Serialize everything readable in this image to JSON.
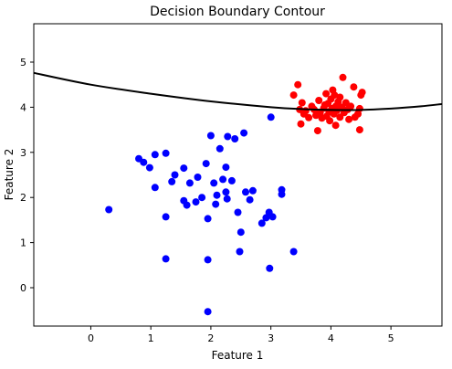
{
  "chart_data": {
    "type": "scatter",
    "title": "Decision Boundary Contour",
    "xlabel": "Feature 1",
    "ylabel": "Feature 2",
    "xlim": [
      -0.95,
      5.85
    ],
    "ylim": [
      -0.85,
      5.85
    ],
    "xticks": [
      0,
      1,
      2,
      3,
      4,
      5
    ],
    "yticks": [
      0,
      1,
      2,
      3,
      4,
      5
    ],
    "grid": false,
    "boundary": {
      "color": "#000000",
      "points": [
        [
          -0.95,
          4.76
        ],
        [
          0,
          4.5
        ],
        [
          1,
          4.3
        ],
        [
          2,
          4.13
        ],
        [
          3,
          4.0
        ],
        [
          3.5,
          3.96
        ],
        [
          4,
          3.94
        ],
        [
          4.5,
          3.94
        ],
        [
          5,
          3.97
        ],
        [
          5.5,
          4.02
        ],
        [
          5.85,
          4.07
        ]
      ]
    },
    "series": [
      {
        "color": "#0000ff",
        "points": [
          [
            0.3,
            1.73
          ],
          [
            0.8,
            2.86
          ],
          [
            0.88,
            2.78
          ],
          [
            0.98,
            2.66
          ],
          [
            1.07,
            2.95
          ],
          [
            1.07,
            2.22
          ],
          [
            1.25,
            2.98
          ],
          [
            1.25,
            1.57
          ],
          [
            1.25,
            0.64
          ],
          [
            1.35,
            2.35
          ],
          [
            1.4,
            2.5
          ],
          [
            1.55,
            2.65
          ],
          [
            1.55,
            1.93
          ],
          [
            1.6,
            1.83
          ],
          [
            1.65,
            2.32
          ],
          [
            1.75,
            1.9
          ],
          [
            1.78,
            2.45
          ],
          [
            1.85,
            2.0
          ],
          [
            1.92,
            2.75
          ],
          [
            1.95,
            1.53
          ],
          [
            1.95,
            0.62
          ],
          [
            1.95,
            -0.53
          ],
          [
            2.0,
            3.37
          ],
          [
            2.05,
            2.32
          ],
          [
            2.08,
            1.85
          ],
          [
            2.1,
            2.05
          ],
          [
            2.15,
            3.08
          ],
          [
            2.2,
            2.4
          ],
          [
            2.25,
            2.12
          ],
          [
            2.25,
            2.67
          ],
          [
            2.27,
            1.97
          ],
          [
            2.28,
            3.35
          ],
          [
            2.35,
            2.37
          ],
          [
            2.4,
            3.3
          ],
          [
            2.45,
            1.67
          ],
          [
            2.5,
            1.23
          ],
          [
            2.48,
            0.8
          ],
          [
            2.55,
            3.43
          ],
          [
            2.58,
            2.12
          ],
          [
            2.65,
            1.95
          ],
          [
            2.7,
            2.15
          ],
          [
            2.85,
            1.43
          ],
          [
            2.92,
            1.55
          ],
          [
            2.97,
            1.67
          ],
          [
            3.0,
            3.78
          ],
          [
            2.98,
            0.43
          ],
          [
            3.03,
            1.57
          ],
          [
            3.18,
            2.17
          ],
          [
            3.18,
            2.07
          ],
          [
            3.38,
            0.8
          ]
        ]
      },
      {
        "color": "#ff0000",
        "points": [
          [
            3.38,
            4.27
          ],
          [
            3.45,
            4.5
          ],
          [
            3.48,
            3.95
          ],
          [
            3.5,
            3.63
          ],
          [
            3.52,
            4.1
          ],
          [
            3.55,
            3.85
          ],
          [
            3.58,
            3.92
          ],
          [
            3.63,
            3.77
          ],
          [
            3.68,
            4.02
          ],
          [
            3.72,
            3.95
          ],
          [
            3.75,
            3.82
          ],
          [
            3.78,
            3.48
          ],
          [
            3.8,
            4.15
          ],
          [
            3.82,
            3.88
          ],
          [
            3.85,
            3.76
          ],
          [
            3.88,
            3.98
          ],
          [
            3.9,
            4.05
          ],
          [
            3.92,
            4.3
          ],
          [
            3.93,
            3.8
          ],
          [
            3.95,
            4.08
          ],
          [
            3.97,
            3.9
          ],
          [
            3.98,
            3.7
          ],
          [
            4.0,
            4.18
          ],
          [
            4.02,
            3.97
          ],
          [
            4.03,
            4.38
          ],
          [
            4.05,
            3.85
          ],
          [
            4.06,
            4.27
          ],
          [
            4.08,
            4.02
          ],
          [
            4.08,
            3.6
          ],
          [
            4.1,
            3.93
          ],
          [
            4.12,
            4.12
          ],
          [
            4.15,
            4.22
          ],
          [
            4.15,
            3.78
          ],
          [
            4.18,
            4.0
          ],
          [
            4.2,
            4.66
          ],
          [
            4.22,
            3.88
          ],
          [
            4.25,
            4.1
          ],
          [
            4.28,
            3.95
          ],
          [
            4.3,
            3.73
          ],
          [
            4.33,
            4.02
          ],
          [
            4.38,
            4.45
          ],
          [
            4.4,
            3.78
          ],
          [
            4.45,
            3.85
          ],
          [
            4.48,
            3.5
          ],
          [
            4.48,
            3.97
          ],
          [
            4.5,
            4.27
          ],
          [
            4.52,
            4.33
          ]
        ]
      }
    ]
  }
}
